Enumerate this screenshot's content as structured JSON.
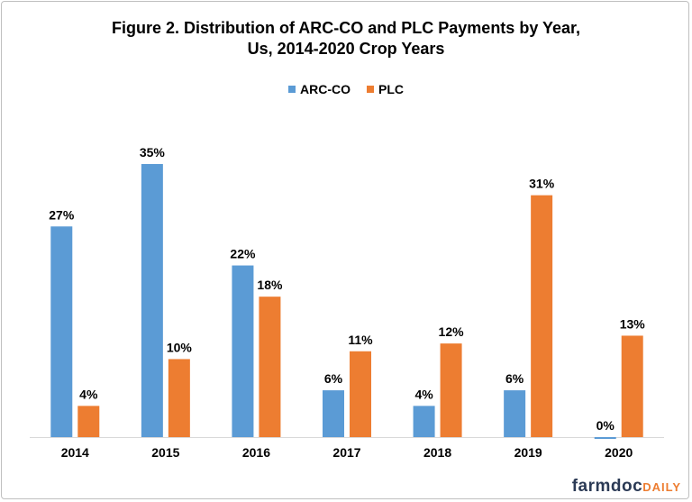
{
  "chart_data": {
    "type": "bar",
    "title": "Figure 2.  Distribution  of ARC-CO and PLC Payments by Year,",
    "subtitle": "Us, 2014-2020  Crop Years",
    "categories": [
      "2014",
      "2015",
      "2016",
      "2017",
      "2018",
      "2019",
      "2020"
    ],
    "series": [
      {
        "name": "ARC-CO",
        "color": "#5B9BD5",
        "values": [
          27,
          35,
          22,
          6,
          4,
          6,
          0
        ],
        "labels": [
          "27%",
          "35%",
          "22%",
          "6%",
          "4%",
          "6%",
          "0%"
        ]
      },
      {
        "name": "PLC",
        "color": "#ED7D31",
        "values": [
          4,
          10,
          18,
          11,
          12,
          31,
          13
        ],
        "labels": [
          "4%",
          "10%",
          "18%",
          "11%",
          "12%",
          "31%",
          "13%"
        ]
      }
    ],
    "xlabel": "",
    "ylabel": "",
    "ylim": [
      0,
      35
    ],
    "grid": false,
    "legend": "top"
  },
  "logo": {
    "main": "farmdoc",
    "accent": "DAILY"
  }
}
